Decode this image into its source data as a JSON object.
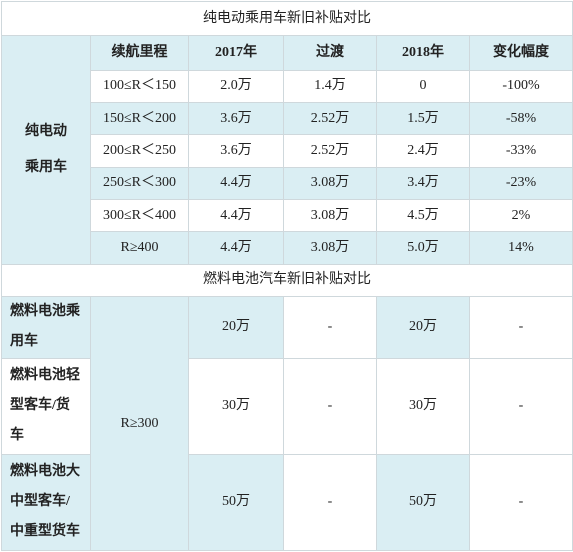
{
  "section1": {
    "title": "纯电动乘用车新旧补贴对比",
    "vehicle_label": "纯电动\n乘用车",
    "headers": [
      "续航里程",
      "2017年",
      "过渡",
      "2018年",
      "变化幅度"
    ],
    "rows": [
      [
        "100≤R＜150",
        "2.0万",
        "1.4万",
        "0",
        "-100%"
      ],
      [
        "150≤R＜200",
        "3.6万",
        "2.52万",
        "1.5万",
        "-58%"
      ],
      [
        "200≤R＜250",
        "3.6万",
        "2.52万",
        "2.4万",
        "-33%"
      ],
      [
        "250≤R＜300",
        "4.4万",
        "3.08万",
        "3.4万",
        "-23%"
      ],
      [
        "300≤R＜400",
        "4.4万",
        "3.08万",
        "4.5万",
        "2%"
      ],
      [
        "R≥400",
        "4.4万",
        "3.08万",
        "5.0万",
        "14%"
      ]
    ]
  },
  "section2": {
    "title": "燃料电池汽车新旧补贴对比",
    "range": "R≥300",
    "rows": [
      {
        "category": "燃料电池乘\n用车",
        "y2017": "20万",
        "transition": "-",
        "y2018": "20万",
        "change": "-"
      },
      {
        "category": "燃料电池轻\n型客车/货\n车",
        "y2017": "30万",
        "transition": "-",
        "y2018": "30万",
        "change": "-"
      },
      {
        "category": "燃料电池大\n中型客车/\n中重型货车",
        "y2017": "50万",
        "transition": "-",
        "y2018": "50万",
        "change": "-"
      }
    ]
  }
}
